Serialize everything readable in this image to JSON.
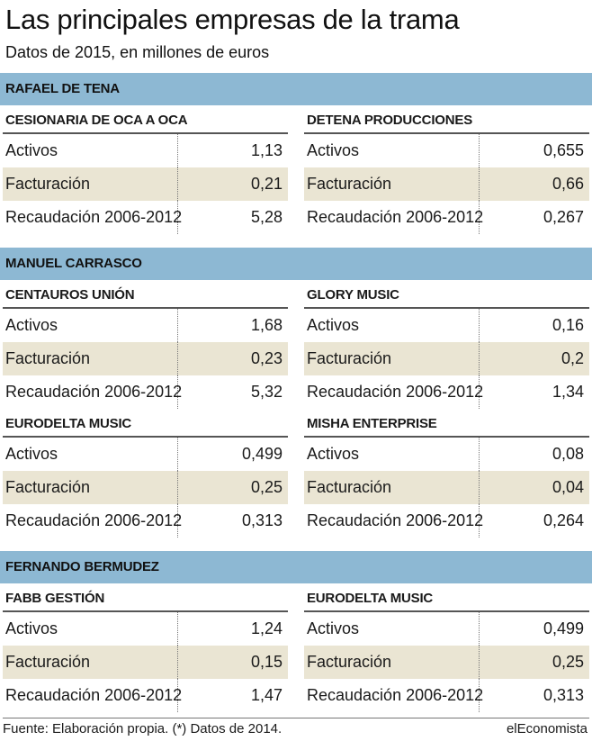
{
  "header": {
    "title": "Las principales empresas de la trama",
    "subtitle": "Datos de 2015, en millones de euros"
  },
  "chart_data": {
    "type": "table",
    "metric_labels": [
      "Activos",
      "Facturación",
      "Recaudación 2006-2012"
    ],
    "groups": [
      {
        "name": "RAFAEL DE TENA",
        "rows": [
          [
            {
              "name": "CESIONARIA DE OCA A OCA",
              "values": [
                "1,13",
                "0,21",
                "5,28"
              ]
            },
            {
              "name": "DETENA PRODUCCIONES",
              "values": [
                "0,655",
                "0,66",
                "0,267"
              ]
            }
          ]
        ]
      },
      {
        "name": "MANUEL CARRASCO",
        "rows": [
          [
            {
              "name": "CENTAUROS UNIÓN",
              "values": [
                "1,68",
                "0,23",
                "5,32"
              ]
            },
            {
              "name": "GLORY MUSIC",
              "values": [
                "0,16",
                "0,2",
                "1,34"
              ]
            }
          ],
          [
            {
              "name": "EURODELTA MUSIC",
              "values": [
                "0,499",
                "0,25",
                "0,313"
              ]
            },
            {
              "name": "MISHA ENTERPRISE",
              "values": [
                "0,08",
                "0,04",
                "0,264"
              ]
            }
          ]
        ]
      },
      {
        "name": "FERNANDO BERMUDEZ",
        "rows": [
          [
            {
              "name": "FABB GESTIÓN",
              "values": [
                "1,24",
                "0,15",
                "1,47"
              ]
            },
            {
              "name": "EURODELTA MUSIC",
              "values": [
                "0,499",
                "0,25",
                "0,313"
              ]
            }
          ]
        ]
      }
    ],
    "band_color": "#8db8d3",
    "stripe_color": "#eae5d3"
  },
  "footer": {
    "source": "Fuente: Elaboración propia. (*) Datos de 2014.",
    "brand": "elEconomista"
  }
}
